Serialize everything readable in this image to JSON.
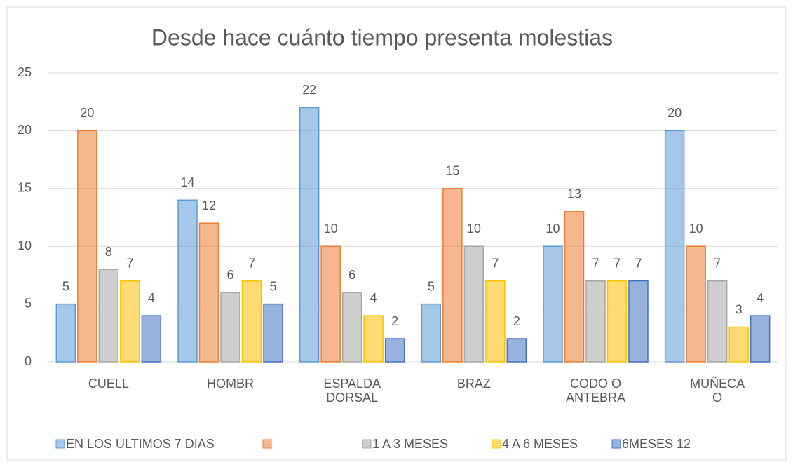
{
  "chart_data": {
    "type": "bar",
    "title": "Desde hace cuánto tiempo presenta molestias",
    "categories": [
      "CUELL",
      "HOMBR",
      "ESPALDA\nDORSAL",
      "BRAZ",
      "CODO O\nANTEBRA",
      "MUÑECA\nO"
    ],
    "series": [
      {
        "name": "EN LOS ULTIMOS 7 DIAS",
        "color": "#5b9bd5",
        "values": [
          5,
          14,
          22,
          5,
          10,
          20
        ]
      },
      {
        "name": null,
        "color": "#ed7d31",
        "values": [
          20,
          12,
          10,
          15,
          13,
          10
        ]
      },
      {
        "name": "1 A 3 MESES",
        "color": "#a5a5a5",
        "values": [
          8,
          6,
          6,
          10,
          7,
          7
        ]
      },
      {
        "name": "4 A 6 MESES",
        "color": "#ffc000",
        "values": [
          7,
          7,
          4,
          7,
          7,
          3
        ]
      },
      {
        "name": "6MESES 12",
        "color": "#4472c4",
        "values": [
          4,
          5,
          2,
          2,
          7,
          4
        ]
      }
    ],
    "ylim": [
      0,
      25
    ],
    "yticks": [
      0,
      5,
      10,
      15,
      20,
      25
    ],
    "grid": true,
    "legend": "bottom"
  }
}
